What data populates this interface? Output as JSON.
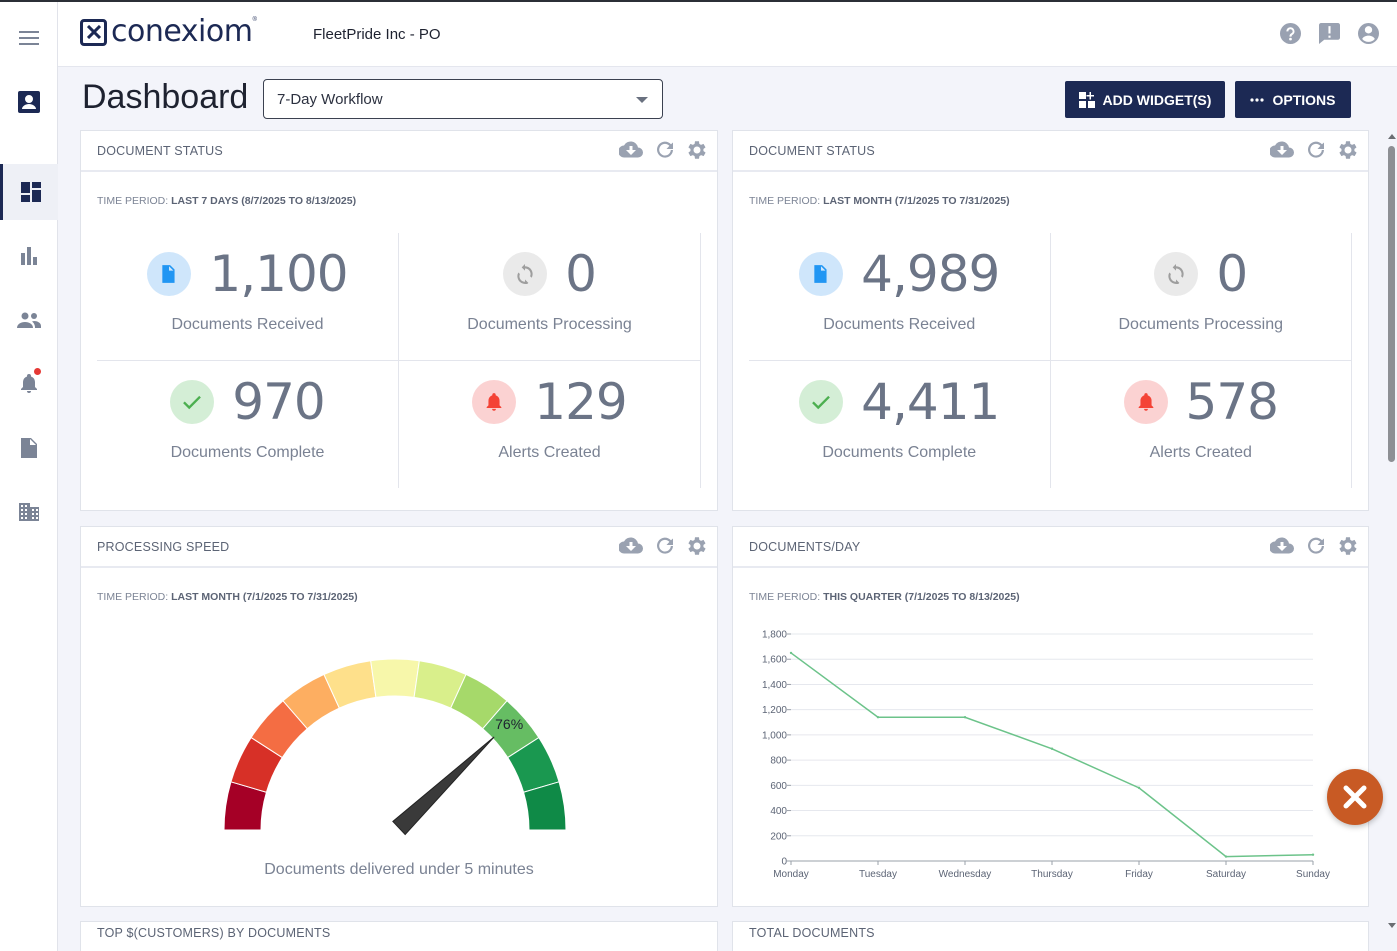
{
  "app": {
    "brand": "conexiom",
    "company": "FleetPride Inc - PO"
  },
  "page": {
    "title": "Dashboard",
    "workflow_select": "7-Day Workflow"
  },
  "actions": {
    "add_widget": "ADD WIDGET(S)",
    "options": "OPTIONS"
  },
  "sidebar": [
    {
      "icon": "menu-icon"
    },
    {
      "icon": "contact-card-icon"
    },
    {
      "icon": "dashboard-icon",
      "active": true
    },
    {
      "icon": "bar-chart-icon"
    },
    {
      "icon": "people-icon"
    },
    {
      "icon": "bell-icon",
      "notification": true
    },
    {
      "icon": "document-icon"
    },
    {
      "icon": "building-icon"
    }
  ],
  "header_icons": [
    "help-icon",
    "feedback-icon",
    "account-icon"
  ],
  "widgets": {
    "status1": {
      "title": "DOCUMENT STATUS",
      "period_label": "TIME PERIOD: ",
      "period_value": "LAST 7 DAYS (8/7/2025 TO 8/13/2025)",
      "stats": [
        {
          "value": "1,100",
          "label": "Documents Received",
          "icon": "document-icon",
          "color": "#2196f3",
          "bg": "#cfe6fb"
        },
        {
          "value": "0",
          "label": "Documents Processing",
          "icon": "sync-icon",
          "color": "#9e9e9e",
          "bg": "#eaeaea"
        },
        {
          "value": "970",
          "label": "Documents Complete",
          "icon": "check-icon",
          "color": "#4caf50",
          "bg": "#d4eed6"
        },
        {
          "value": "129",
          "label": "Alerts Created",
          "icon": "bell-icon",
          "color": "#f44336",
          "bg": "#fbd2d2"
        }
      ]
    },
    "status2": {
      "title": "DOCUMENT STATUS",
      "period_label": "TIME PERIOD: ",
      "period_value": "LAST MONTH (7/1/2025 TO 7/31/2025)",
      "stats": [
        {
          "value": "4,989",
          "label": "Documents Received",
          "icon": "document-icon",
          "color": "#2196f3",
          "bg": "#cfe6fb"
        },
        {
          "value": "0",
          "label": "Documents Processing",
          "icon": "sync-icon",
          "color": "#9e9e9e",
          "bg": "#eaeaea"
        },
        {
          "value": "4,411",
          "label": "Documents Complete",
          "icon": "check-icon",
          "color": "#4caf50",
          "bg": "#d4eed6"
        },
        {
          "value": "578",
          "label": "Alerts Created",
          "icon": "bell-icon",
          "color": "#f44336",
          "bg": "#fbd2d2"
        }
      ]
    },
    "speed": {
      "title": "PROCESSING SPEED",
      "period_label": "TIME PERIOD: ",
      "period_value": "LAST MONTH (7/1/2025 TO 7/31/2025)",
      "gauge_value": 76,
      "gauge_text": "76%",
      "gauge_label": "Documents delivered under 5 minutes",
      "segment_colors": [
        "#a50026",
        "#d73027",
        "#f46d43",
        "#fdae61",
        "#fee08b",
        "#f7f7aa",
        "#d9ef8b",
        "#a6d96a",
        "#66bd63",
        "#1a9850",
        "#0f8a47"
      ]
    },
    "perday": {
      "title": "DOCUMENTS/DAY",
      "period_label": "TIME PERIOD: ",
      "period_value": "THIS QUARTER (7/1/2025 TO 8/13/2025)"
    },
    "bottom_left": {
      "title": "TOP $(CUSTOMERS) BY DOCUMENTS"
    },
    "bottom_right": {
      "title": "TOTAL DOCUMENTS"
    }
  },
  "chart_data": {
    "type": "line",
    "title": "DOCUMENTS/DAY",
    "categories": [
      "Monday",
      "Tuesday",
      "Wednesday",
      "Thursday",
      "Friday",
      "Saturday",
      "Sunday"
    ],
    "series": [
      {
        "name": "Documents",
        "values": [
          1650,
          1140,
          1140,
          890,
          580,
          35,
          50
        ],
        "color": "#6cc38a"
      }
    ],
    "yticks": [
      "0",
      "200",
      "400",
      "600",
      "800",
      "1,000",
      "1,200",
      "1,400",
      "1,600",
      "1,800"
    ],
    "ylim": [
      0,
      1800
    ],
    "grid": true
  }
}
